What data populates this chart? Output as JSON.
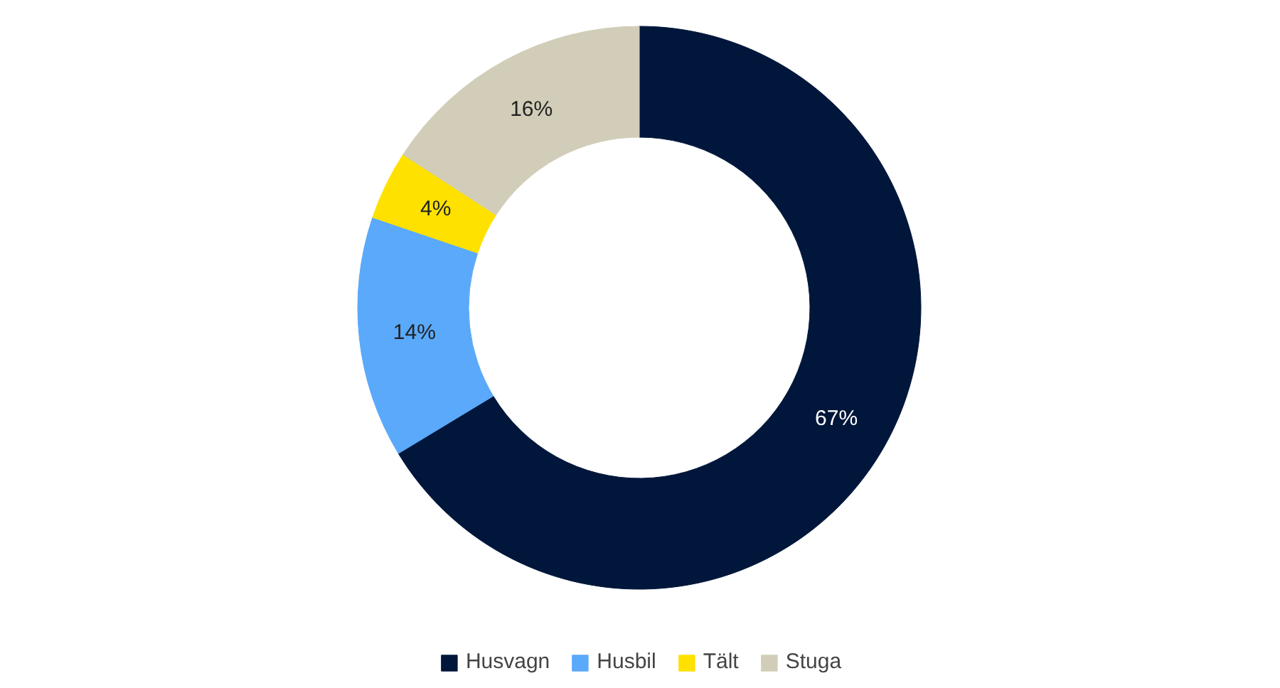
{
  "chart_data": {
    "type": "donut",
    "categories": [
      "Husvagn",
      "Husbil",
      "Tält",
      "Stuga"
    ],
    "values": [
      67,
      14,
      4,
      16
    ],
    "colors": [
      "#00163a",
      "#5aa9fa",
      "#ffe100",
      "#d1cdb8"
    ],
    "value_labels": [
      "67%",
      "14%",
      "4%",
      "16%"
    ],
    "legend": "bottom"
  }
}
